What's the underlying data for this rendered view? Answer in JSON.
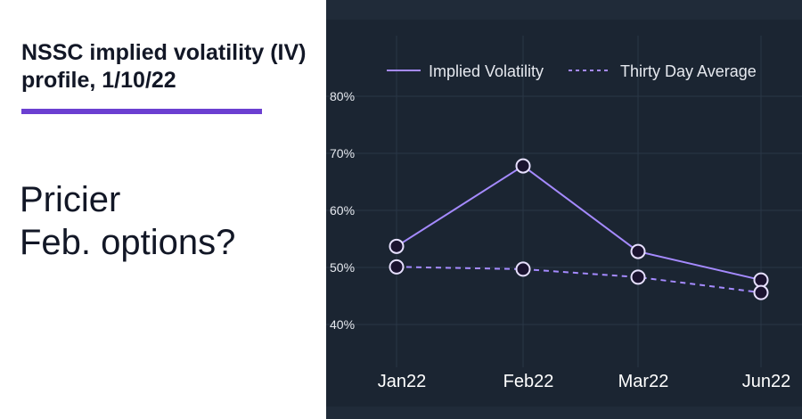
{
  "title": "NSSC implied volatility (IV) profile, 1/10/22",
  "subtitle_line1": "Pricier",
  "subtitle_line2": "Feb. options?",
  "colors": {
    "accent": "#6b3fd1",
    "panel": "#1b2532",
    "series": "#a58aff",
    "marker_fill": "#1b1330"
  },
  "chart_data": {
    "type": "line",
    "categories": [
      "Jan22",
      "Feb22",
      "Mar22",
      "Jun22"
    ],
    "series": [
      {
        "name": "Implied Volatility",
        "style": "solid",
        "values": [
          53.7,
          67.8,
          52.8,
          47.8
        ]
      },
      {
        "name": "Thirty Day Average",
        "style": "dashed",
        "values": [
          50.1,
          49.7,
          48.3,
          45.6
        ]
      }
    ],
    "ylim": [
      35,
      82
    ],
    "yticks": [
      40,
      50,
      60,
      70,
      80
    ],
    "ytick_labels": [
      "40%",
      "50%",
      "60%",
      "70%",
      "80%"
    ],
    "grid": true,
    "legend": "top"
  }
}
